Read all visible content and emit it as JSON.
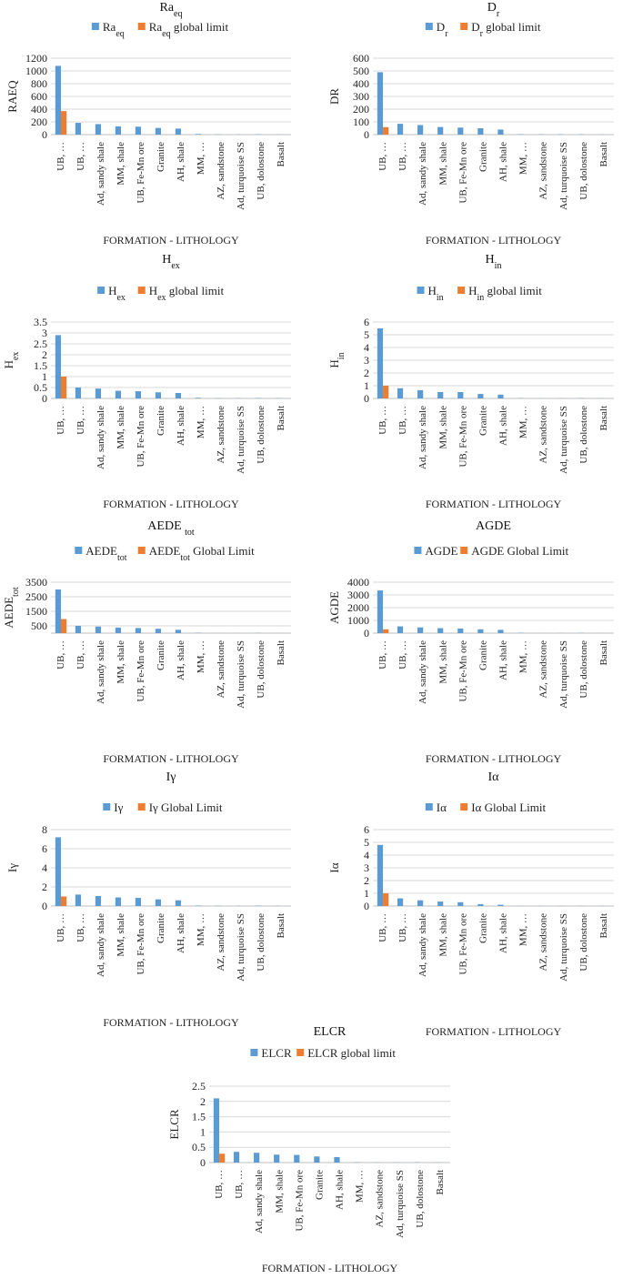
{
  "colors": {
    "primary": "#5B9BD5",
    "limit": "#ED7D31"
  },
  "categories": [
    "UB, …",
    "UB, …",
    "Ad, sandy shale",
    "MM, shale",
    "UB, Fe-Mn ore",
    "Granite",
    "AH, shale",
    "MM, …",
    "AZ, sandstone",
    "Ad, turquoise SS",
    "UB, dolostone",
    "Basalt"
  ],
  "chart_data": [
    {
      "id": "raeq",
      "type": "bar",
      "title": "Raeq",
      "ylabel": "RAEQ",
      "xlabel": "FORMATION - LITHOLOGY",
      "yticks": [
        "0",
        "200",
        "400",
        "600",
        "800",
        "1000",
        "1200"
      ],
      "ylim": [
        0,
        1200
      ],
      "series": [
        {
          "name": "Raeq",
          "values": [
            1080,
            185,
            165,
            130,
            125,
            105,
            95,
            10,
            3,
            3,
            5,
            2
          ]
        },
        {
          "name": "Raeq global limit",
          "values": [
            370,
            0,
            0,
            0,
            0,
            0,
            0,
            0,
            0,
            0,
            0,
            0
          ]
        }
      ]
    },
    {
      "id": "dr",
      "type": "bar",
      "title": "Dr",
      "ylabel": "DR",
      "xlabel": "FORMATION - LITHOLOGY",
      "yticks": [
        "0",
        "100",
        "200",
        "300",
        "400",
        "500",
        "600"
      ],
      "ylim": [
        0,
        600
      ],
      "series": [
        {
          "name": "Dr",
          "values": [
            490,
            85,
            75,
            60,
            55,
            50,
            40,
            3,
            2,
            2,
            2,
            1
          ]
        },
        {
          "name": "Dr global limit",
          "values": [
            59,
            0,
            0,
            0,
            0,
            0,
            0,
            0,
            0,
            0,
            0,
            0
          ]
        }
      ]
    },
    {
      "id": "hex",
      "type": "bar",
      "title": "Hex",
      "ylabel": "Hex",
      "xlabel": "FORMATION - LITHOLOGY",
      "yticks": [
        "0",
        "0.5",
        "1",
        "1.5",
        "2",
        "2.5",
        "3",
        "3.5"
      ],
      "ylim": [
        0,
        3.5
      ],
      "series": [
        {
          "name": "Hex",
          "values": [
            2.9,
            0.5,
            0.45,
            0.35,
            0.33,
            0.28,
            0.25,
            0.03,
            0.01,
            0.01,
            0.02,
            0.01
          ]
        },
        {
          "name": "Hex global limit",
          "values": [
            1,
            0,
            0,
            0,
            0,
            0,
            0,
            0,
            0,
            0,
            0,
            0
          ]
        }
      ]
    },
    {
      "id": "hin",
      "type": "bar",
      "title": "Hin",
      "ylabel": "Hin",
      "xlabel": "FORMATION - LITHOLOGY",
      "yticks": [
        "0",
        "1",
        "2",
        "3",
        "4",
        "5",
        "6"
      ],
      "ylim": [
        0,
        6
      ],
      "series": [
        {
          "name": "Hin",
          "values": [
            5.5,
            0.8,
            0.65,
            0.5,
            0.5,
            0.35,
            0.3,
            0.02,
            0.01,
            0.01,
            0.02,
            0.01
          ]
        },
        {
          "name": "Hin  global limit",
          "values": [
            1,
            0,
            0,
            0,
            0,
            0,
            0,
            0,
            0,
            0,
            0,
            0
          ]
        }
      ]
    },
    {
      "id": "aede",
      "type": "bar",
      "title": "AEDE tot",
      "ylabel": "AEDEtot",
      "xlabel": "FORMATION - LITHOLOGY",
      "yticks": [
        "500",
        "1500",
        "2500",
        "3500"
      ],
      "ylim": [
        0,
        3500
      ],
      "ytickvalues": [
        500,
        1500,
        2500,
        3500
      ],
      "series": [
        {
          "name": "AEDEtot",
          "values": [
            3000,
            500,
            450,
            380,
            350,
            300,
            230,
            20,
            5,
            5,
            10,
            5
          ]
        },
        {
          "name": "AEDEtot Global Limit",
          "values": [
            970,
            0,
            0,
            0,
            0,
            0,
            0,
            0,
            0,
            0,
            0,
            0
          ]
        }
      ]
    },
    {
      "id": "agde",
      "type": "bar",
      "title": "AGDE",
      "ylabel": "AGDE",
      "xlabel": "FORMATION - LITHOLOGY",
      "yticks": [
        "0",
        "1000",
        "2000",
        "3000",
        "4000"
      ],
      "ylim": [
        0,
        4000
      ],
      "series": [
        {
          "name": "AGDE",
          "values": [
            3350,
            530,
            450,
            390,
            360,
            300,
            260,
            25,
            8,
            8,
            15,
            5
          ]
        },
        {
          "name": "AGDE Global Limit",
          "values": [
            300,
            0,
            0,
            0,
            0,
            0,
            0,
            0,
            0,
            0,
            0,
            0
          ]
        }
      ]
    },
    {
      "id": "igamma",
      "type": "bar",
      "title": "Iγ",
      "ylabel": "Iγ",
      "xlabel": "FORMATION - LITHOLOGY",
      "yticks": [
        "0",
        "2",
        "4",
        "6",
        "8"
      ],
      "ylim": [
        0,
        8
      ],
      "series": [
        {
          "name": "Iγ",
          "values": [
            7.2,
            1.2,
            1.05,
            0.9,
            0.85,
            0.7,
            0.6,
            0.05,
            0.02,
            0.02,
            0.04,
            0.02
          ]
        },
        {
          "name": "Iγ Global Limit",
          "values": [
            1,
            0,
            0,
            0,
            0,
            0,
            0,
            0,
            0,
            0,
            0,
            0
          ]
        }
      ]
    },
    {
      "id": "ialpha",
      "type": "bar",
      "title": "Iα",
      "ylabel": "Iα",
      "xlabel": "FORMATION - LITHOLOGY",
      "yticks": [
        "0",
        "1",
        "2",
        "3",
        "4",
        "5",
        "6"
      ],
      "ylim": [
        0,
        6
      ],
      "series": [
        {
          "name": "Iα",
          "values": [
            4.8,
            0.6,
            0.45,
            0.35,
            0.3,
            0.15,
            0.1,
            0.01,
            0.01,
            0.01,
            0.01,
            0.01
          ]
        },
        {
          "name": "Iα Global Limit",
          "values": [
            1,
            0,
            0,
            0,
            0,
            0,
            0,
            0,
            0,
            0,
            0,
            0
          ]
        }
      ]
    },
    {
      "id": "elcr",
      "type": "bar",
      "title": "ELCR",
      "ylabel": "ELCR",
      "xlabel": "FORMATION - LITHOLOGY",
      "yticks": [
        "0",
        "0.5",
        "1",
        "1.5",
        "2",
        "2.5"
      ],
      "ylim": [
        0,
        2.5
      ],
      "series": [
        {
          "name": "ELCR",
          "values": [
            2.1,
            0.35,
            0.32,
            0.26,
            0.25,
            0.2,
            0.18,
            0.01,
            0.005,
            0.005,
            0.01,
            0.005
          ]
        },
        {
          "name": "ELCR global limit",
          "values": [
            0.29,
            0,
            0,
            0,
            0,
            0,
            0,
            0,
            0,
            0,
            0,
            0
          ]
        }
      ]
    }
  ]
}
